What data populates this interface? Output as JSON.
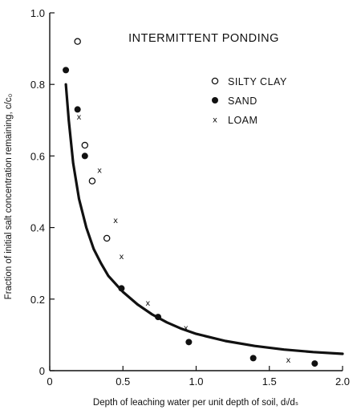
{
  "chart_data": {
    "type": "scatter",
    "title": "INTERMITTENT PONDING",
    "xlabel": "Depth of leaching water per unit depth of soil, dₗ/dₛ",
    "ylabel": "Fraction of initial salt concentration remaining, c/c₀",
    "xlim": [
      0,
      2.0
    ],
    "ylim": [
      0,
      1.0
    ],
    "x_ticks": [
      0,
      0.5,
      1.0,
      1.5,
      2.0
    ],
    "x_tick_labels": [
      "0",
      "0.5",
      "1.0",
      "1.5",
      "2.0"
    ],
    "y_ticks": [
      0,
      0.2,
      0.4,
      0.6,
      0.8,
      1.0
    ],
    "y_tick_labels": [
      "0",
      "0.2",
      "0.4",
      "0.6",
      "0.8",
      "1.0"
    ],
    "grid": false,
    "legend_position": "top-right",
    "series": [
      {
        "name": "SILTY CLAY",
        "marker": "open-circle",
        "points": [
          [
            0.19,
            0.92
          ],
          [
            0.24,
            0.63
          ],
          [
            0.29,
            0.53
          ],
          [
            0.39,
            0.37
          ]
        ]
      },
      {
        "name": "SAND",
        "marker": "filled-circle",
        "points": [
          [
            0.11,
            0.84
          ],
          [
            0.19,
            0.73
          ],
          [
            0.24,
            0.6
          ],
          [
            0.49,
            0.23
          ],
          [
            0.74,
            0.15
          ],
          [
            0.95,
            0.08
          ],
          [
            1.39,
            0.035
          ],
          [
            1.81,
            0.02
          ]
        ]
      },
      {
        "name": "LOAM",
        "marker": "x",
        "points": [
          [
            0.2,
            0.71
          ],
          [
            0.34,
            0.56
          ],
          [
            0.45,
            0.42
          ],
          [
            0.49,
            0.32
          ],
          [
            0.67,
            0.19
          ],
          [
            0.93,
            0.12
          ],
          [
            1.63,
            0.03
          ]
        ]
      }
    ],
    "curve": {
      "label": "",
      "points": [
        [
          0.11,
          0.8
        ],
        [
          0.13,
          0.7
        ],
        [
          0.16,
          0.58
        ],
        [
          0.2,
          0.48
        ],
        [
          0.25,
          0.4
        ],
        [
          0.3,
          0.34
        ],
        [
          0.35,
          0.3
        ],
        [
          0.4,
          0.265
        ],
        [
          0.5,
          0.22
        ],
        [
          0.6,
          0.185
        ],
        [
          0.7,
          0.157
        ],
        [
          0.8,
          0.135
        ],
        [
          0.9,
          0.117
        ],
        [
          1.0,
          0.103
        ],
        [
          1.2,
          0.083
        ],
        [
          1.4,
          0.069
        ],
        [
          1.6,
          0.059
        ],
        [
          1.8,
          0.052
        ],
        [
          2.0,
          0.047
        ]
      ]
    }
  }
}
